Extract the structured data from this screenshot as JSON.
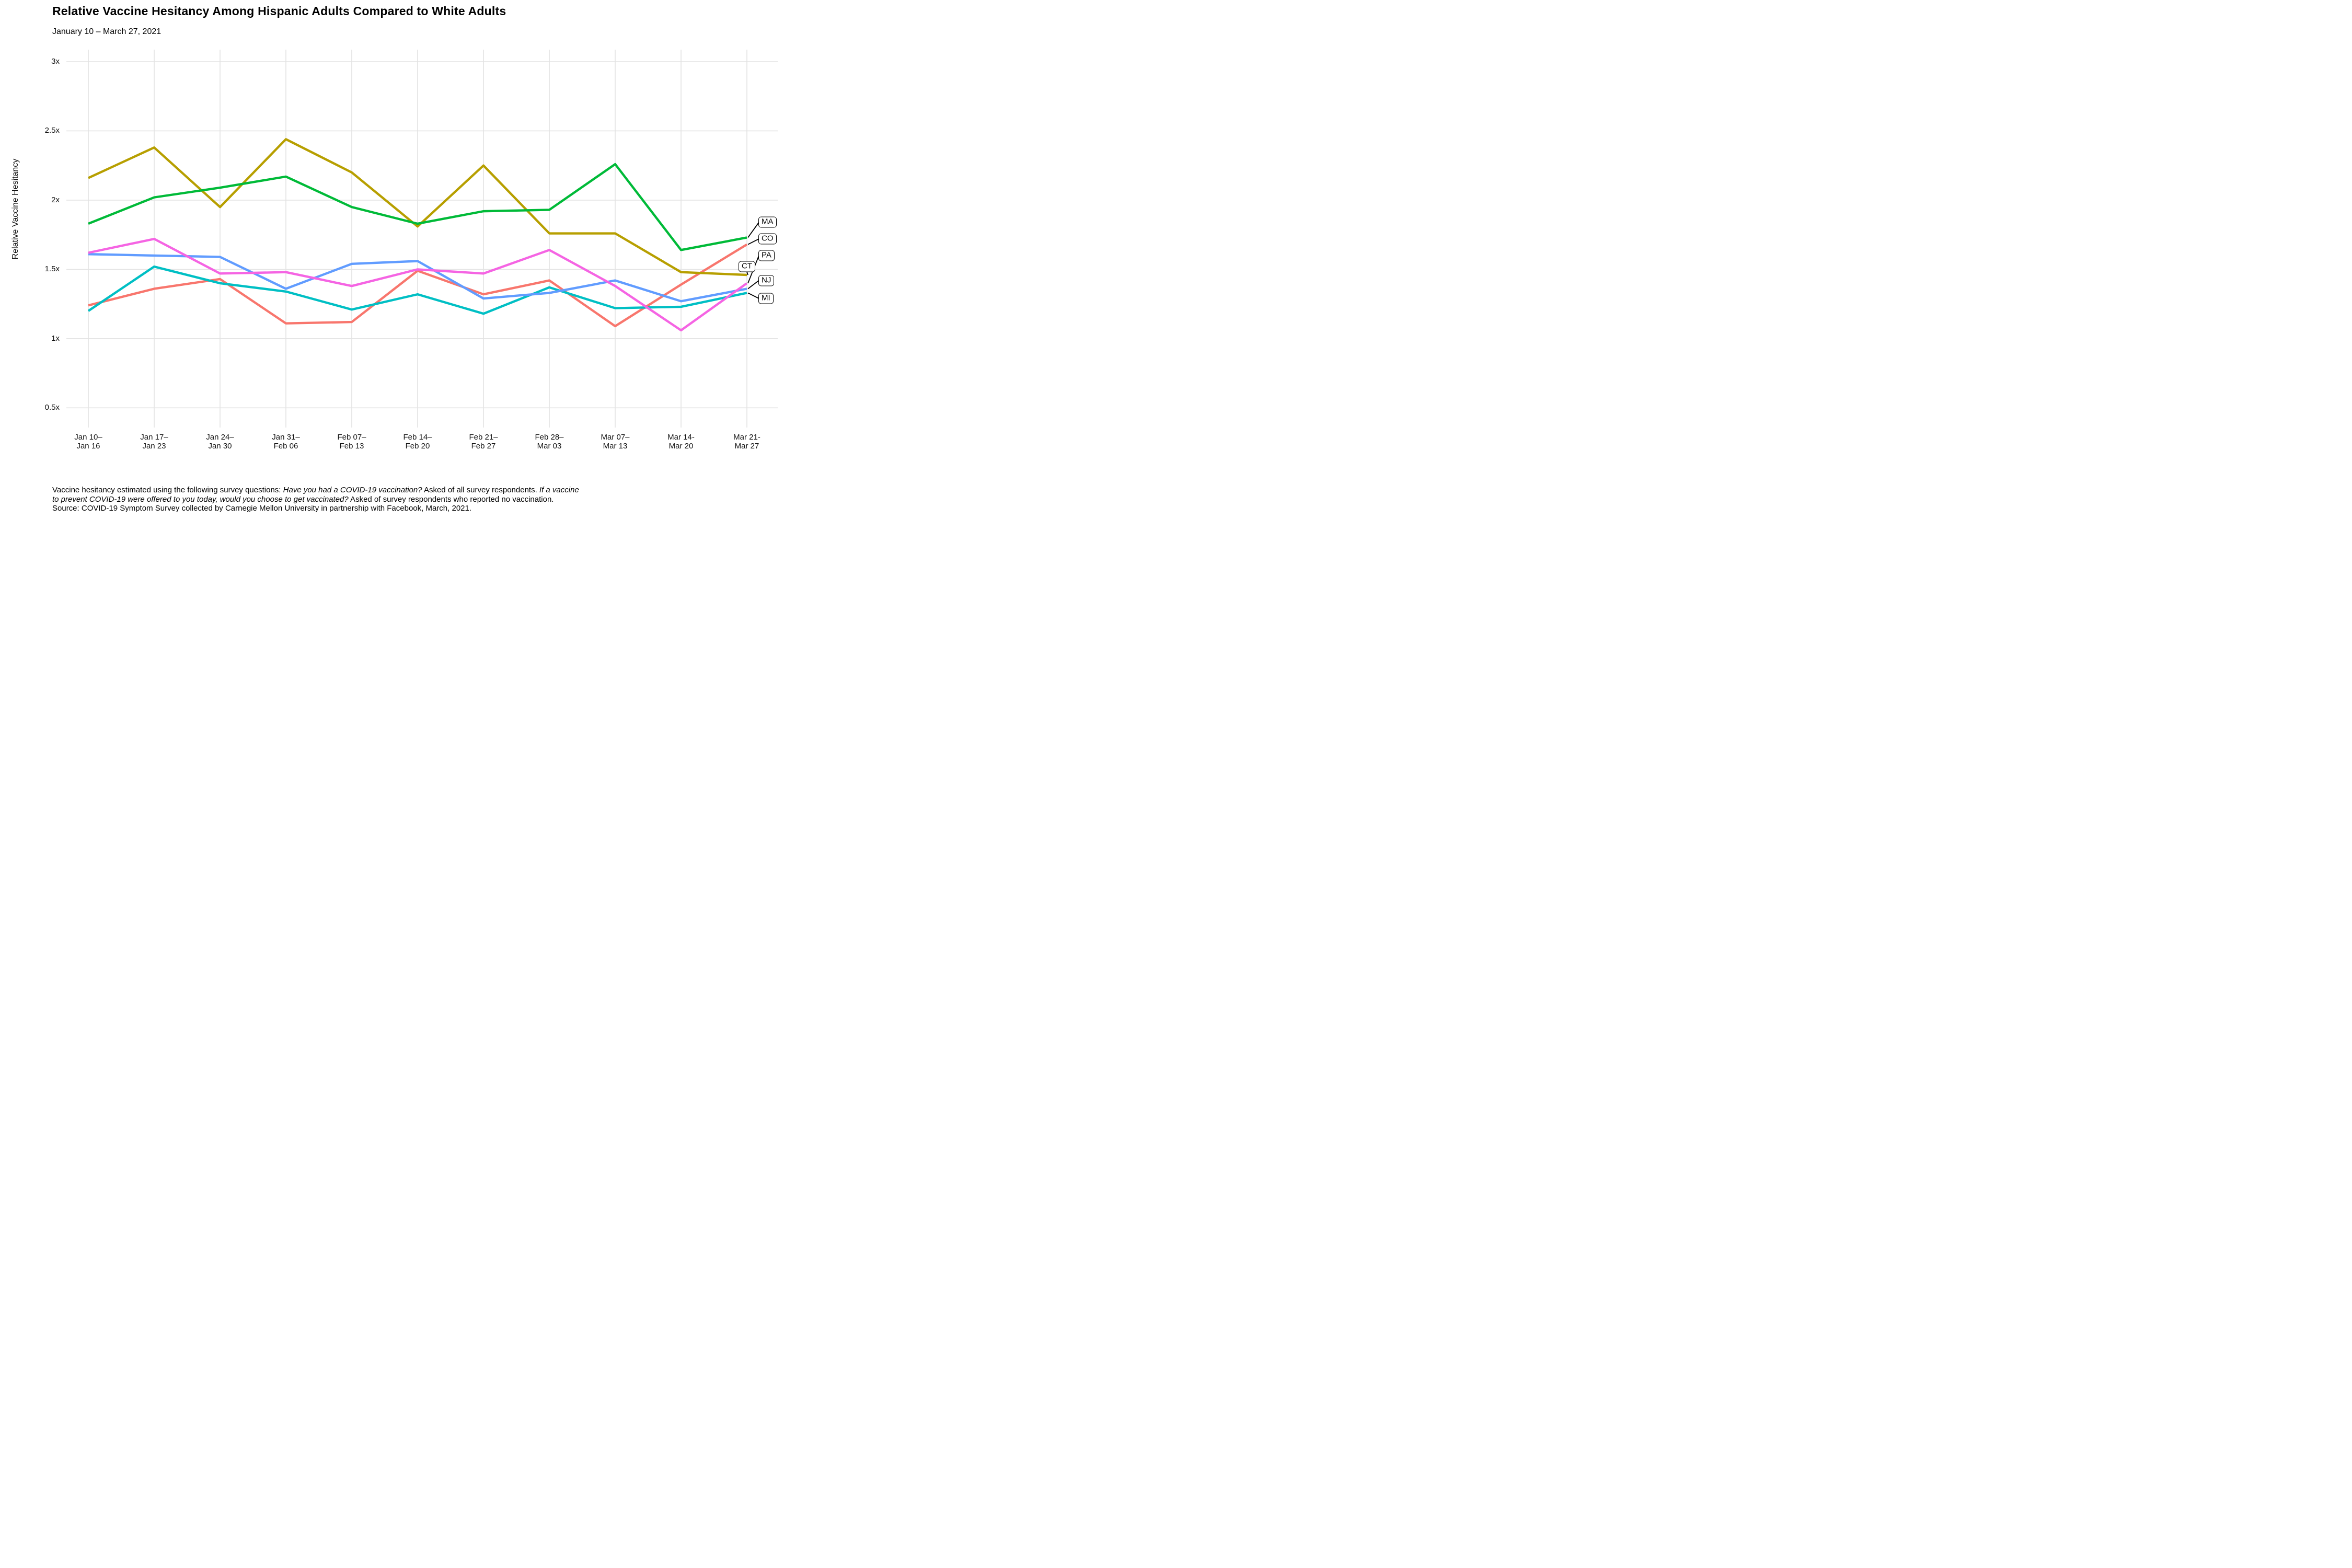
{
  "title": "Relative Vaccine Hesitancy Among Hispanic Adults Compared to White Adults",
  "subtitle": "January 10 – March 27, 2021",
  "y_axis_title": "Relative Vaccine Hesitancy",
  "footnote": {
    "line1_normal": "Vaccine hesitancy estimated using the following survey questions: ",
    "line1_italic": "Have you had a COVID-19 vaccination?",
    "line1_normal2": " Asked of all survey respondents. ",
    "line1_italic2": "If a vaccine",
    "line2_italic": "to prevent COVID-19 were offered to you today, would you choose to get vaccinated?",
    "line2_normal": " Asked of survey respondents who reported no vaccination.",
    "line3": "Source: COVID-19 Symptom Survey collected by Carnegie Mellon University in partnership with Facebook, March, 2021."
  },
  "colors": {
    "gridline": "#E3E3E3",
    "leader_line": "#000000",
    "axis_text": "#111111"
  },
  "chart_data": {
    "type": "line",
    "title": "Relative Vaccine Hesitancy Among Hispanic Adults Compared to White Adults",
    "subtitle": "January 10 – March 27, 2021",
    "xlabel": "",
    "ylabel": "Relative Vaccine Hesitancy",
    "ylim": [
      0.5,
      3
    ],
    "grid": true,
    "legend_position": "direct-labels-right",
    "x_categories": [
      {
        "line1": "Jan 10–",
        "line2": "Jan 16"
      },
      {
        "line1": "Jan 17–",
        "line2": "Jan 23"
      },
      {
        "line1": "Jan 24–",
        "line2": "Jan 30"
      },
      {
        "line1": "Jan 31–",
        "line2": "Feb 06"
      },
      {
        "line1": "Feb 07–",
        "line2": "Feb 13"
      },
      {
        "line1": "Feb 14–",
        "line2": "Feb 20"
      },
      {
        "line1": "Feb 21–",
        "line2": "Feb 27"
      },
      {
        "line1": "Feb 28–",
        "line2": "Mar 03"
      },
      {
        "line1": "Mar 07–",
        "line2": "Mar 13"
      },
      {
        "line1": "Mar 14-",
        "line2": "Mar 20"
      },
      {
        "line1": "Mar 21-",
        "line2": "Mar 27"
      }
    ],
    "y_ticks": [
      {
        "v": 3,
        "label": "3x"
      },
      {
        "v": 2.5,
        "label": "2.5x"
      },
      {
        "v": 2,
        "label": "2x"
      },
      {
        "v": 1.5,
        "label": "1.5x"
      },
      {
        "v": 1,
        "label": "1x"
      },
      {
        "v": 0.5,
        "label": "0.5x"
      }
    ],
    "series": [
      {
        "name": "CO",
        "color": "#F8766D",
        "label_y": 1.72,
        "values": [
          1.24,
          1.36,
          1.43,
          1.11,
          1.12,
          1.49,
          1.32,
          1.42,
          1.09,
          1.39,
          1.68
        ]
      },
      {
        "name": "CT",
        "color": "#B79F00",
        "label_y": 1.52,
        "label_inset": true,
        "values": [
          2.16,
          2.38,
          1.95,
          2.44,
          2.2,
          1.81,
          2.25,
          1.76,
          1.76,
          1.48,
          1.46
        ]
      },
      {
        "name": "MA",
        "color": "#00BA38",
        "label_y": 1.84,
        "values": [
          1.83,
          2.02,
          2.09,
          2.17,
          1.95,
          1.83,
          1.92,
          1.93,
          2.26,
          1.64,
          1.73
        ]
      },
      {
        "name": "MI",
        "color": "#00BFC4",
        "label_y": 1.29,
        "values": [
          1.2,
          1.52,
          1.4,
          1.34,
          1.21,
          1.32,
          1.18,
          1.37,
          1.22,
          1.23,
          1.33
        ]
      },
      {
        "name": "NJ",
        "color": "#619CFF",
        "label_y": 1.42,
        "values": [
          1.61,
          1.6,
          1.59,
          1.36,
          1.54,
          1.56,
          1.29,
          1.33,
          1.42,
          1.27,
          1.36
        ]
      },
      {
        "name": "PA",
        "color": "#F564E3",
        "label_y": 1.6,
        "values": [
          1.62,
          1.72,
          1.47,
          1.48,
          1.38,
          1.5,
          1.47,
          1.64,
          1.38,
          1.06,
          1.4
        ]
      }
    ]
  }
}
